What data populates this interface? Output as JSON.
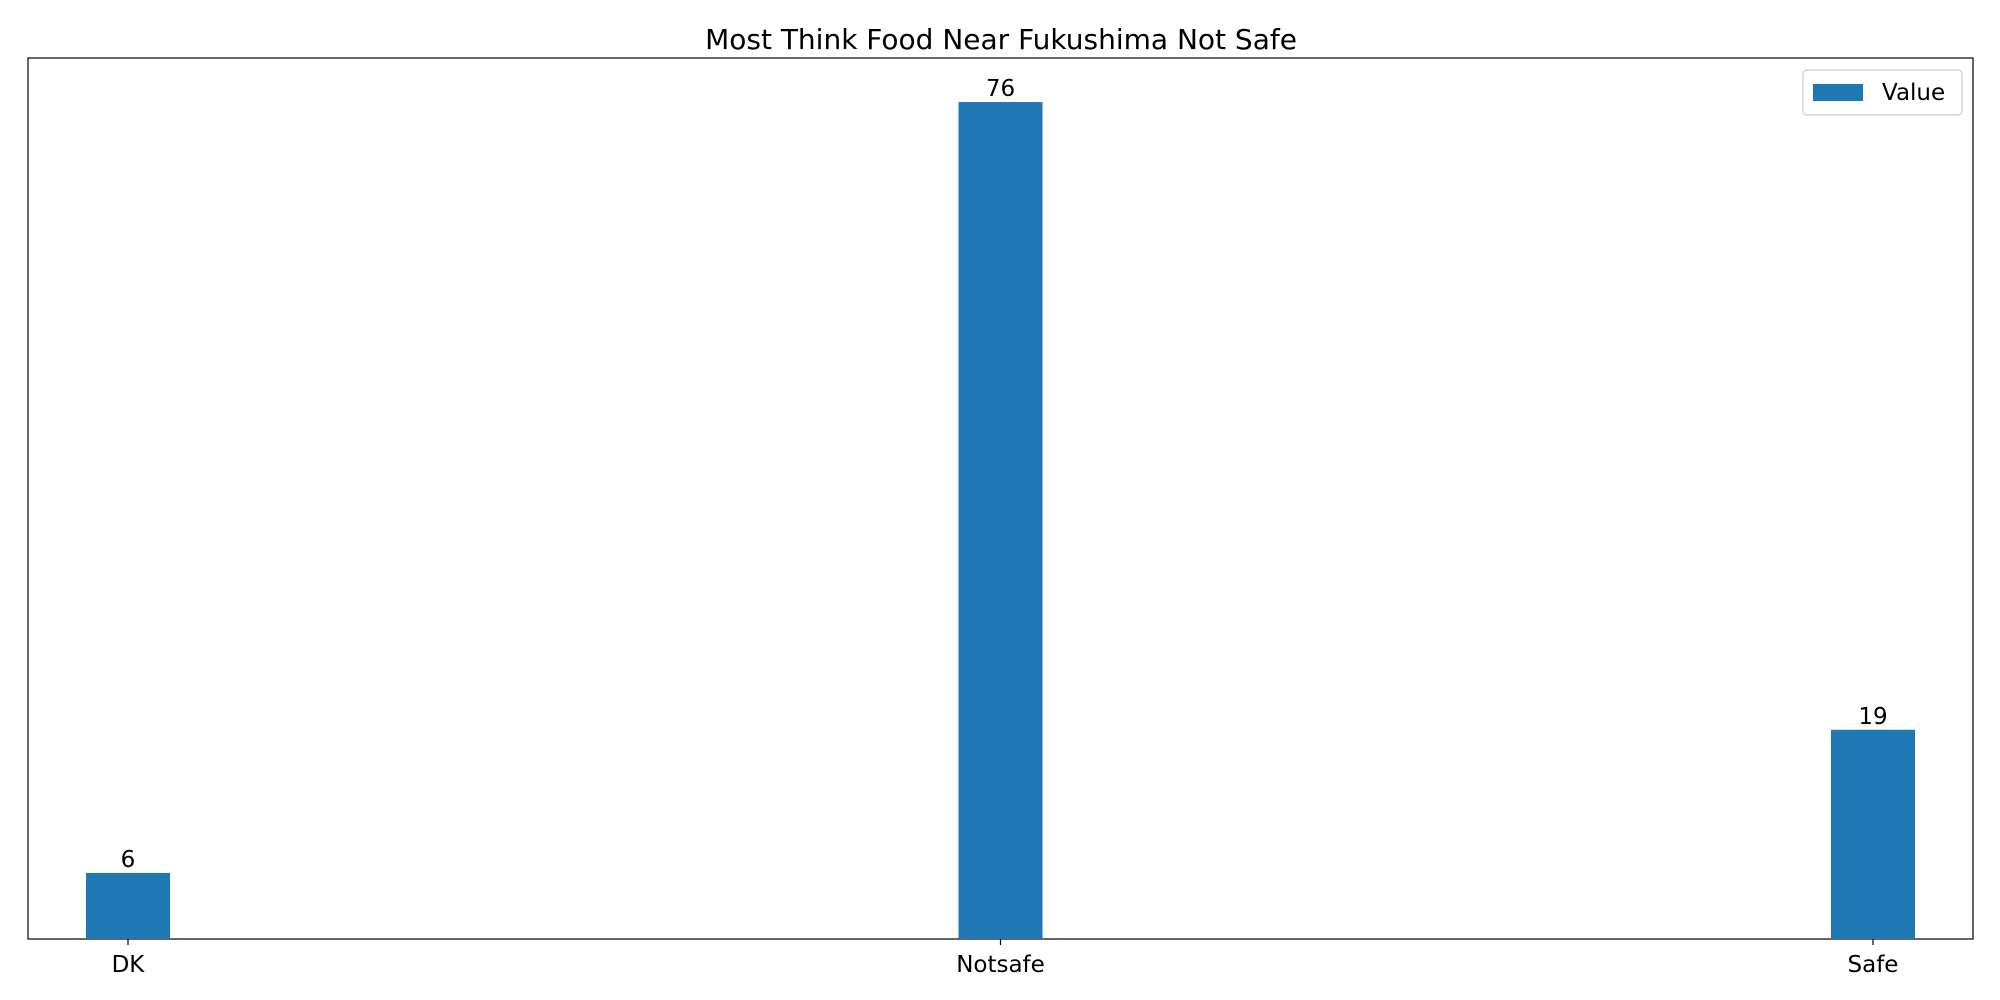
{
  "chart_data": {
    "type": "bar",
    "title": "Most Think Food Near Fukushima Not Safe",
    "xlabel": "",
    "ylabel": "",
    "categories": [
      "DK",
      "Notsafe",
      "Safe"
    ],
    "series": [
      {
        "name": "Value",
        "values": [
          6,
          76,
          19
        ],
        "color": "#1f77b4"
      }
    ],
    "ylim": [
      0,
      80
    ],
    "grid": false,
    "legend": "top-right",
    "y_ticks_visible": false
  }
}
